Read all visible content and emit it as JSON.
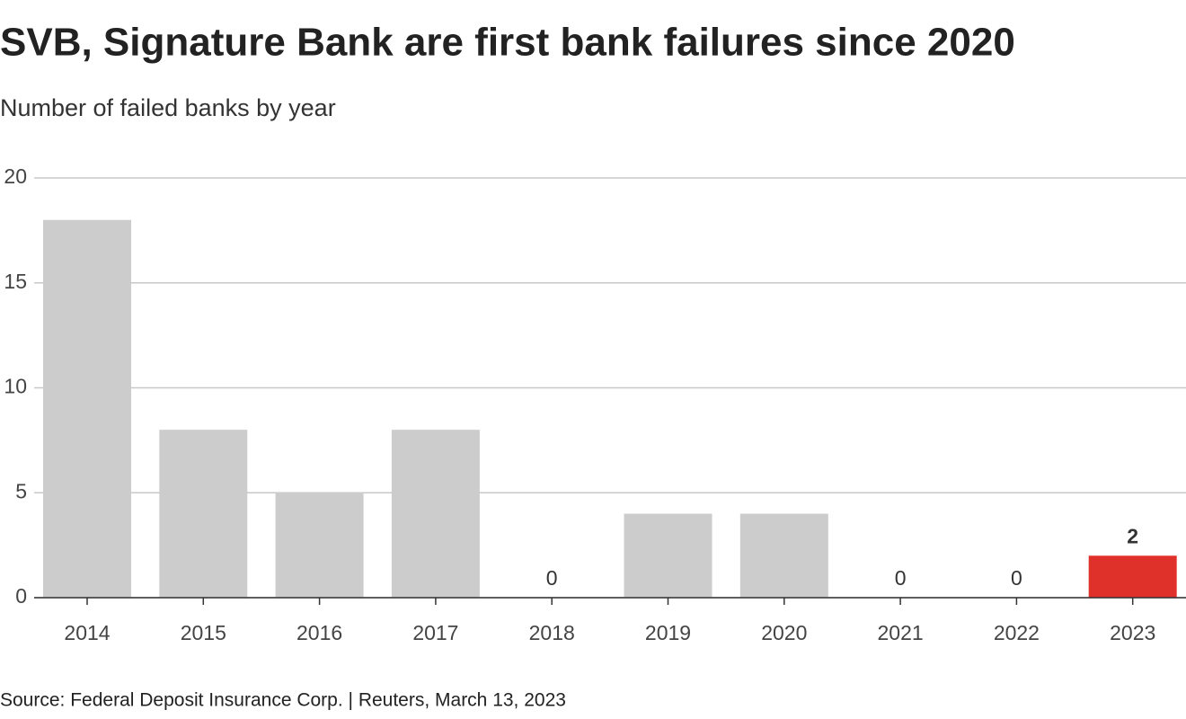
{
  "chart_data": {
    "type": "bar",
    "title": "SVB, Signature Bank are first bank failures since 2020",
    "subtitle": "Number of failed banks by year",
    "source": "Source: Federal Deposit Insurance Corp. | Reuters, March 13, 2023",
    "categories": [
      "2014",
      "2015",
      "2016",
      "2017",
      "2018",
      "2019",
      "2020",
      "2021",
      "2022",
      "2023"
    ],
    "values": [
      18,
      8,
      5,
      8,
      0,
      4,
      4,
      0,
      0,
      2
    ],
    "value_labels": [
      null,
      null,
      null,
      null,
      "0",
      null,
      null,
      "0",
      "0",
      "2"
    ],
    "colors": [
      "#cccccc",
      "#cccccc",
      "#cccccc",
      "#cccccc",
      "#cccccc",
      "#cccccc",
      "#cccccc",
      "#cccccc",
      "#cccccc",
      "#e0302a"
    ],
    "ylim": [
      0,
      20
    ],
    "yticks": [
      0,
      5,
      10,
      15,
      20
    ],
    "grid": true
  }
}
